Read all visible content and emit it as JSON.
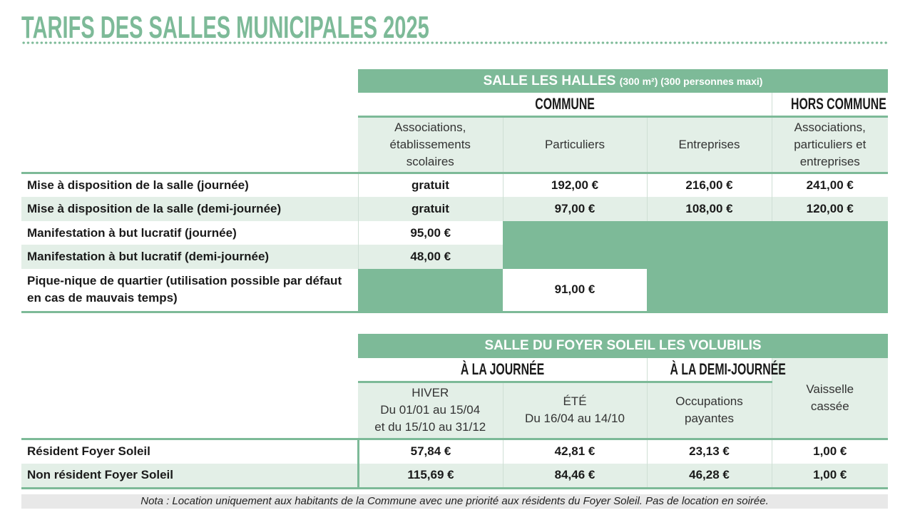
{
  "title": "TARIFS DES SALLES MUNICIPALES 2025",
  "halles": {
    "header": "SALLE LES HALLES",
    "header_detail": "(300 m²) (300 personnes maxi)",
    "commune": "COMMUNE",
    "hors_commune": "HORS COMMUNE",
    "columns": [
      "Associations, établissements scolaires",
      "Particuliers",
      "Entreprises",
      "Associations, particuliers et entreprises"
    ],
    "rows": [
      {
        "label": "Mise à disposition de la salle (journée)",
        "values": [
          "gratuit",
          "192,00 €",
          "216,00 €",
          "241,00 €"
        ]
      },
      {
        "label": "Mise à disposition de la salle (demi-journée)",
        "values": [
          "gratuit",
          "97,00 €",
          "108,00 €",
          "120,00 €"
        ]
      },
      {
        "label": "Manifestation à but lucratif (journée)",
        "values": [
          "95,00 €"
        ]
      },
      {
        "label": "Manifestation à but lucratif (demi-journée)",
        "values": [
          "48,00 €"
        ]
      },
      {
        "label": "Pique-nique de quartier (utilisation possible par défaut en cas de mauvais temps)",
        "values": [
          "91,00 €"
        ]
      }
    ]
  },
  "foyer": {
    "header": "SALLE DU FOYER SOLEIL LES VOLUBILIS",
    "journee": "À LA JOURNÉE",
    "demi": "À LA DEMI-JOURNÉE",
    "columns": [
      {
        "l1": "HIVER",
        "l2": "Du 01/01 au 15/04",
        "l3": "et du 15/10 au 31/12"
      },
      {
        "l1": "ÉTÉ",
        "l2": "Du 16/04 au 14/10"
      },
      {
        "l1": "Occupations",
        "l2": "payantes"
      },
      {
        "l1": "Vaisselle",
        "l2": "cassée"
      }
    ],
    "rows": [
      {
        "label": "Résident Foyer Soleil",
        "values": [
          "57,84 €",
          "42,81 €",
          "23,13 €",
          "1,00 €"
        ]
      },
      {
        "label": "Non résident Foyer Soleil",
        "values": [
          "115,69 €",
          "84,46 €",
          "46,28 €",
          "1,00 €"
        ]
      }
    ]
  },
  "nota": "Nota : Location uniquement aux habitants de la Commune avec une priorité aux résidents du Foyer Soleil. Pas de location en soirée."
}
